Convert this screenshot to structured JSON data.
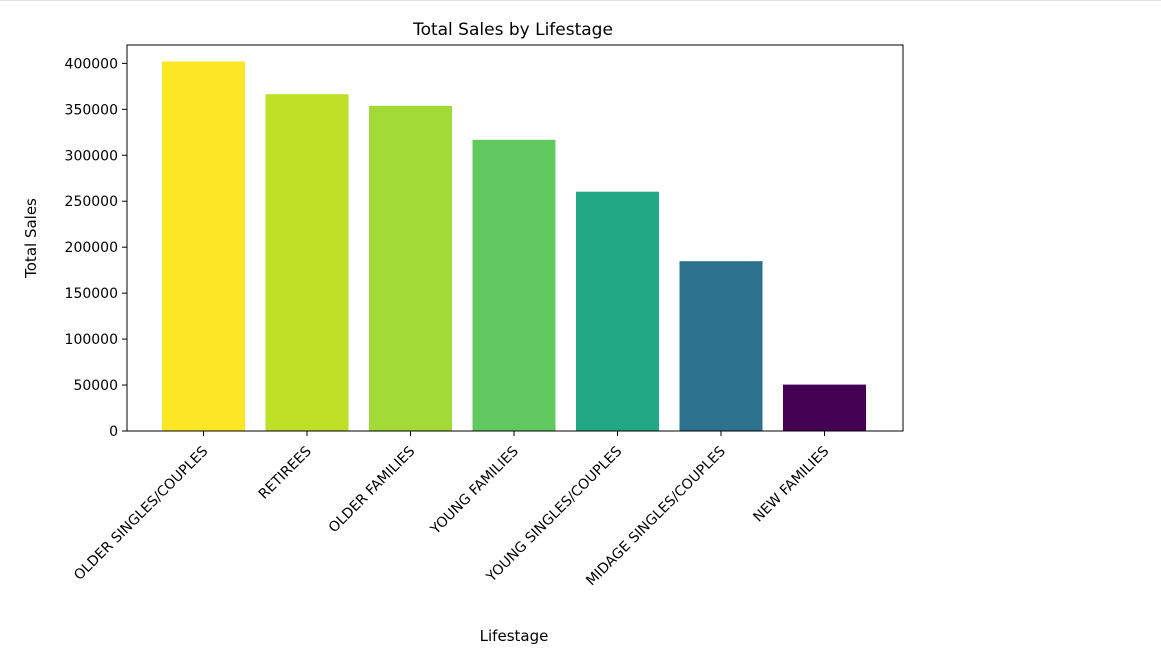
{
  "chart_data": {
    "type": "bar",
    "title": "Total Sales by Lifestage",
    "xlabel": "Lifestage",
    "ylabel": "Total Sales",
    "categories": [
      "OLDER SINGLES/COUPLES",
      "RETIREES",
      "OLDER FAMILIES",
      "YOUNG FAMILIES",
      "YOUNG SINGLES/COUPLES",
      "MIDAGE SINGLES/COUPLES",
      "NEW FAMILIES"
    ],
    "values": [
      402000,
      366500,
      353800,
      316900,
      260400,
      184800,
      50500
    ],
    "colors": [
      "#fde725",
      "#bddf26",
      "#a2da37",
      "#60ca60",
      "#22a884",
      "#2c728e",
      "#440154"
    ],
    "yticks": [
      "0",
      "50000",
      "100000",
      "150000",
      "200000",
      "250000",
      "300000",
      "350000",
      "400000"
    ],
    "ylim": [
      0,
      420000
    ],
    "grid": false
  }
}
